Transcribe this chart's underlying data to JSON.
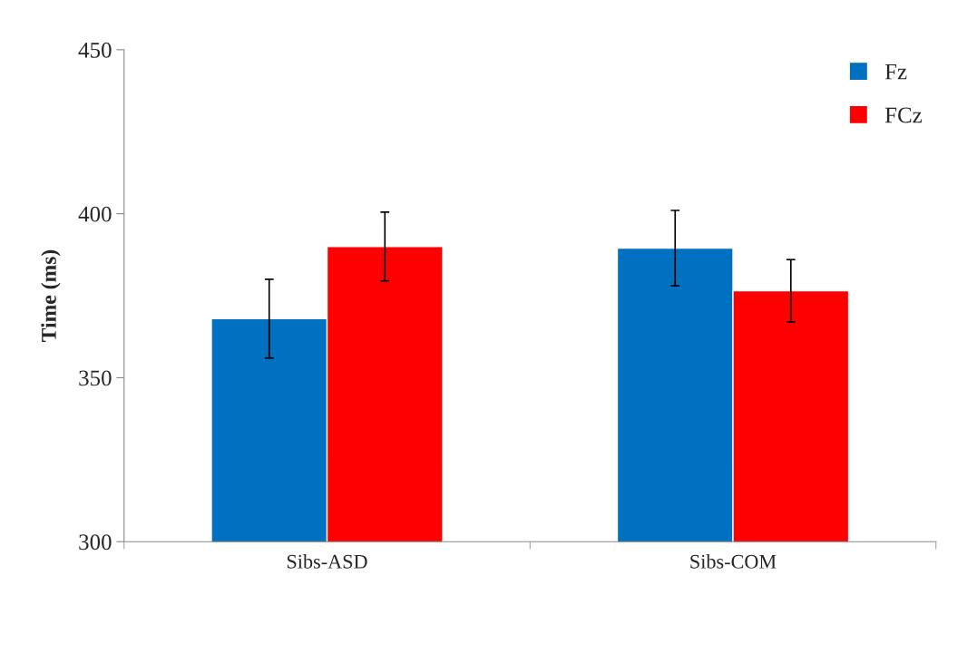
{
  "chart_data": {
    "type": "bar",
    "ylabel": "Time (ms)",
    "categories": [
      "Sibs-ASD",
      "Sibs-COM"
    ],
    "series": [
      {
        "name": "Fz",
        "color": "#0070c0",
        "values": [
          368,
          389.5
        ],
        "errors": [
          12,
          11.5
        ]
      },
      {
        "name": "FCz",
        "color": "#ff0000",
        "values": [
          390,
          376.5
        ],
        "errors": [
          10.5,
          9.5
        ]
      }
    ],
    "ylim": [
      300,
      450
    ],
    "yticks": [
      300,
      350,
      400,
      450
    ],
    "grid": false,
    "legend": "top right"
  }
}
